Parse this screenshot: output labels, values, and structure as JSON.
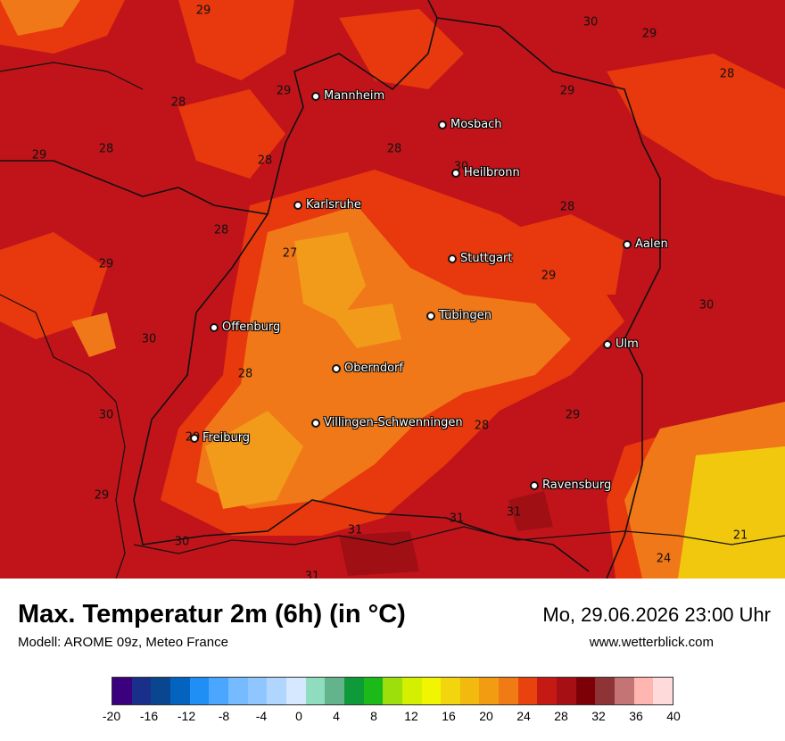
{
  "map": {
    "cities": [
      {
        "name": "Mannheim"
      },
      {
        "name": "Mosbach"
      },
      {
        "name": "Heilbronn"
      },
      {
        "name": "Karlsruhe"
      },
      {
        "name": "Stuttgart"
      },
      {
        "name": "Aalen"
      },
      {
        "name": "Offenburg"
      },
      {
        "name": "Tübingen"
      },
      {
        "name": "Ulm"
      },
      {
        "name": "Oberndorf"
      },
      {
        "name": "Villingen-Schwenningen"
      },
      {
        "name": "Freiburg"
      },
      {
        "name": "Ravensburg"
      }
    ],
    "temperature_labels": [
      "29",
      "30",
      "29",
      "28",
      "29",
      "29",
      "28",
      "28",
      "28",
      "29",
      "28",
      "30",
      "28",
      "27",
      "29",
      "28",
      "29",
      "30",
      "30",
      "28",
      "30",
      "29",
      "28",
      "29",
      "31",
      "31",
      "31",
      "30",
      "31",
      "21",
      "24",
      "29"
    ],
    "colors": {
      "base": "#c0141a",
      "warm": "#e8380d",
      "orange": "#f07818",
      "light_orange": "#f29a1a",
      "yellow": "#f2c80f",
      "dark_red": "#a00f14",
      "border": "#111111"
    }
  },
  "footer": {
    "title": "Max. Temperatur 2m (6h) (in °C)",
    "subtitle": "Modell: AROME 09z, Meteo France",
    "datetime": "Mo, 29.06.2026 23:00 Uhr",
    "website": "www.wetterblick.com"
  },
  "colorbar": {
    "colors": [
      "#3a007d",
      "#1a2f8a",
      "#0a4690",
      "#0563c0",
      "#1f8ef5",
      "#4aa6ff",
      "#76baff",
      "#8fc6ff",
      "#b0d6ff",
      "#d6e8ff",
      "#90dcbe",
      "#63b48c",
      "#0f9a3a",
      "#1cba19",
      "#9ddf0a",
      "#d4ef00",
      "#f2f502",
      "#f2d50d",
      "#f2b90f",
      "#f29d11",
      "#f07a14",
      "#e8420e",
      "#c41a13",
      "#a60f14",
      "#7d0007",
      "#8e3336",
      "#c47475",
      "#ffb6b0",
      "#ffdada"
    ],
    "ticks": [
      "-20",
      "-16",
      "-12",
      "-8",
      "-4",
      "0",
      "4",
      "8",
      "12",
      "16",
      "20",
      "24",
      "28",
      "32",
      "36",
      "40"
    ]
  }
}
